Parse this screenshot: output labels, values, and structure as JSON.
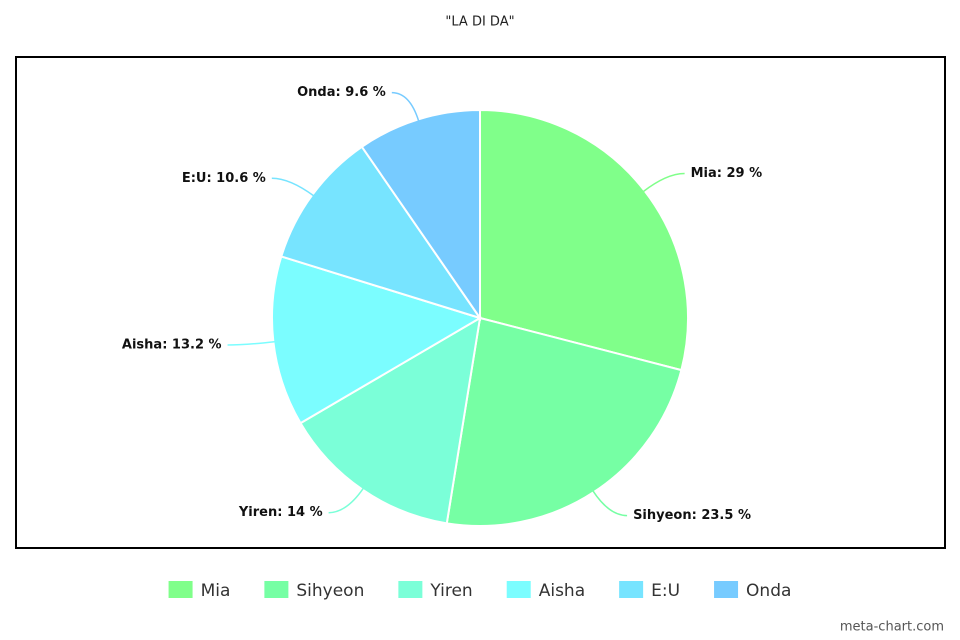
{
  "chart_data": {
    "type": "pie",
    "title": "\"LA DI DA\"",
    "categories": [
      "Mia",
      "Sihyeon",
      "Yiren",
      "Aisha",
      "E:U",
      "Onda"
    ],
    "values": [
      29,
      23.5,
      14,
      13.2,
      10.6,
      9.6
    ],
    "value_labels": [
      "Mia: 29 %",
      "Sihyeon: 23.5 %",
      "Yiren: 14 %",
      "Aisha: 13.2 %",
      "E:U: 10.6 %",
      "Onda: 9.6 %"
    ],
    "colors": [
      "#80ff8a",
      "#76ffa4",
      "#7bffd8",
      "#7bfdff",
      "#77e4ff",
      "#77cbff"
    ],
    "legend": "bottom",
    "credit": "meta-chart.com"
  }
}
